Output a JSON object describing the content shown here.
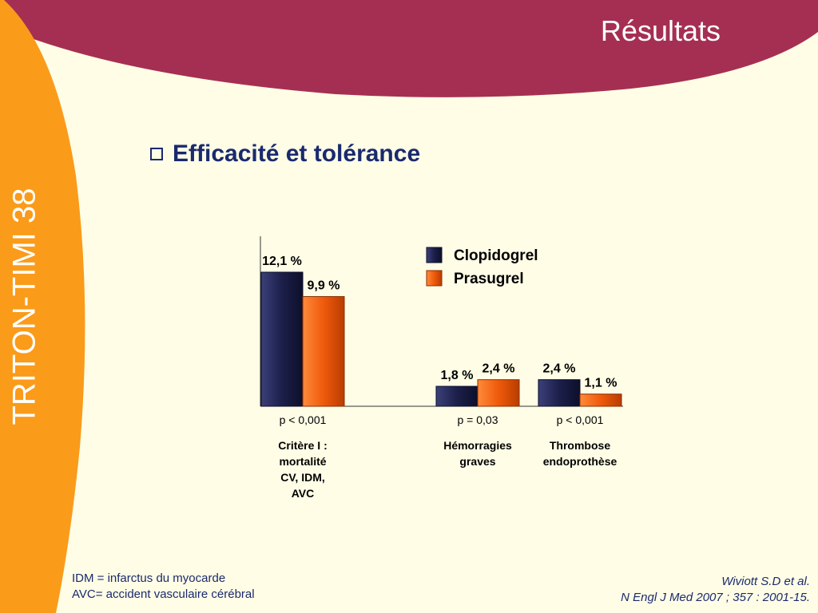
{
  "header": {
    "title": "Résultats"
  },
  "sidebar": {
    "label": "TRITON-TIMI 38"
  },
  "section": {
    "title": "Efficacité et tolérance"
  },
  "colors": {
    "clopidogrel": "#1c1f4a",
    "prasugrel": "#ef5a0c",
    "accent": "#a52f52",
    "side": "#fb9b1a"
  },
  "chart_data": {
    "type": "bar",
    "categories": [
      {
        "label": [
          "Critère I :",
          "mortalité",
          "CV, IDM,",
          "AVC"
        ],
        "p_value": "p < 0,001"
      },
      {
        "label": [
          "Hémorragies",
          "graves"
        ],
        "p_value": "p = 0,03"
      },
      {
        "label": [
          "Thrombose",
          "endoprothèse"
        ],
        "p_value": "p < 0,001"
      }
    ],
    "series": [
      {
        "name": "Clopidogrel",
        "values": [
          12.1,
          1.8,
          2.4
        ],
        "labels": [
          "12,1 %",
          "1,8 %",
          "2,4 %"
        ]
      },
      {
        "name": "Prasugrel",
        "values": [
          9.9,
          2.4,
          1.1
        ],
        "labels": [
          "9,9 %",
          "2,4 %",
          "1,1 %"
        ]
      }
    ],
    "ylim": [
      0,
      14
    ],
    "legend": "top-right"
  },
  "footnotes": {
    "line1": "IDM = infarctus du myocarde",
    "line2": "AVC= accident vasculaire cérébral"
  },
  "citation": {
    "line1": "Wiviott S.D et al.",
    "line2": "N Engl J Med 2007 ; 357 : 2001-15."
  }
}
